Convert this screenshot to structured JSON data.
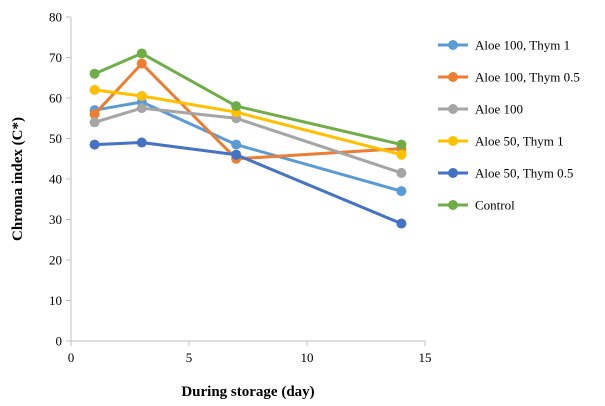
{
  "chart_data": {
    "type": "line",
    "title": "",
    "xlabel": "During storage (day)",
    "ylabel": "Chroma index (C*)",
    "xlim": [
      0,
      15
    ],
    "ylim": [
      0,
      80
    ],
    "xticks": [
      0,
      5,
      10,
      15
    ],
    "yticks": [
      0,
      10,
      20,
      30,
      40,
      50,
      60,
      70,
      80
    ],
    "grid": false,
    "legend_position": "right",
    "series": [
      {
        "name": "Aloe 100, Thym 1",
        "color": "#5b9bd5",
        "x": [
          1,
          3,
          7,
          14
        ],
        "y": [
          57,
          59,
          48.5,
          37
        ]
      },
      {
        "name": "Aloe 100, Thym 0.5",
        "color": "#ed7d31",
        "x": [
          1,
          3,
          7,
          14
        ],
        "y": [
          56,
          68.5,
          45,
          47.5
        ]
      },
      {
        "name": "Aloe 100",
        "color": "#a5a5a5",
        "x": [
          1,
          3,
          7,
          14
        ],
        "y": [
          54,
          57.5,
          55,
          41.5
        ]
      },
      {
        "name": "Aloe 50, Thym 1",
        "color": "#ffc000",
        "x": [
          1,
          3,
          7,
          14
        ],
        "y": [
          62,
          60.5,
          56.5,
          46
        ]
      },
      {
        "name": "Aloe 50, Thym 0.5",
        "color": "#4472c4",
        "x": [
          1,
          3,
          7,
          14
        ],
        "y": [
          48.5,
          49,
          46,
          29
        ]
      },
      {
        "name": "Control",
        "color": "#70ad47",
        "x": [
          1,
          3,
          7,
          14
        ],
        "y": [
          66,
          71,
          58,
          48.5
        ]
      }
    ]
  }
}
